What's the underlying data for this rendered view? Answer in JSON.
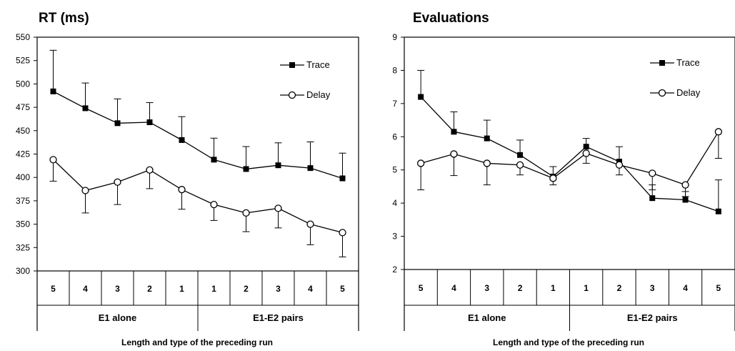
{
  "chart_data": [
    {
      "type": "line",
      "title": "RT (ms)",
      "categories": [
        "5",
        "4",
        "3",
        "2",
        "1",
        "1",
        "2",
        "3",
        "4",
        "5"
      ],
      "groups": [
        "E1 alone",
        "E1-E2 pairs"
      ],
      "xlabel": "Length and type of the preceding run",
      "ylabel": "",
      "ylim": [
        300,
        550
      ],
      "yticks": [
        300,
        325,
        350,
        375,
        400,
        425,
        450,
        475,
        500,
        525,
        550
      ],
      "legend_position": "top-right",
      "series": [
        {
          "name": "Trace",
          "marker": "filled-square",
          "values": [
            492,
            474,
            458,
            459,
            440,
            419,
            409,
            413,
            410,
            399
          ],
          "error_plus": [
            44,
            27,
            26,
            21,
            25,
            23,
            24,
            24,
            28,
            27
          ]
        },
        {
          "name": "Delay",
          "marker": "open-circle",
          "values": [
            419,
            386,
            395,
            408,
            387,
            371,
            362,
            367,
            350,
            341
          ],
          "error_minus": [
            23,
            24,
            24,
            20,
            21,
            17,
            20,
            21,
            22,
            26
          ]
        }
      ]
    },
    {
      "type": "line",
      "title": "Evaluations",
      "categories": [
        "5",
        "4",
        "3",
        "2",
        "1",
        "1",
        "2",
        "3",
        "4",
        "5"
      ],
      "groups": [
        "E1 alone",
        "E1-E2 pairs"
      ],
      "xlabel": "Length and type of the preceding run",
      "ylabel": "",
      "ylim": [
        2,
        9
      ],
      "yticks": [
        2,
        3,
        4,
        5,
        6,
        7,
        8,
        9
      ],
      "legend_position": "top-right",
      "series": [
        {
          "name": "Trace",
          "marker": "filled-square",
          "values": [
            7.2,
            6.15,
            5.95,
            5.45,
            4.8,
            5.7,
            5.25,
            4.15,
            4.1,
            3.75
          ],
          "error_plus": [
            0.8,
            0.6,
            0.55,
            0.45,
            0.3,
            0.25,
            0.45,
            0.4,
            0.25,
            0.95
          ]
        },
        {
          "name": "Delay",
          "marker": "open-circle",
          "values": [
            5.2,
            5.48,
            5.2,
            5.15,
            4.75,
            5.5,
            5.15,
            4.9,
            4.55,
            6.15
          ],
          "error_minus": [
            0.8,
            0.65,
            0.65,
            0.3,
            0.2,
            0.3,
            0.3,
            0.5,
            0.35,
            0.8
          ]
        }
      ]
    }
  ]
}
